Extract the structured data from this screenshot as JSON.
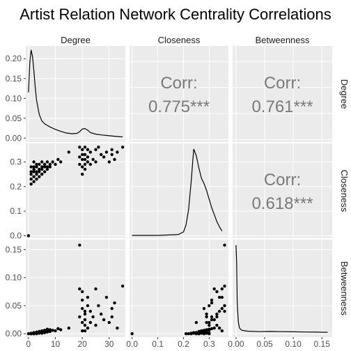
{
  "title": "Artist Relation Network Centrality Correlations",
  "variables": [
    "Degree",
    "Closeness",
    "Betweenness"
  ],
  "colors": {
    "panel_bg": "#ebebeb",
    "grid": "#ffffff",
    "points": "#000000",
    "corr_text": "#7a7a7a",
    "strip_bg": "#ffffff"
  },
  "chart_data": {
    "type": "scatter",
    "layout": "pairs-matrix",
    "grid": true,
    "axes": {
      "Degree": {
        "range": [
          -1,
          36
        ],
        "ticks": [
          0,
          10,
          20,
          30
        ],
        "tick_labels": [
          "0",
          "10",
          "20",
          "30"
        ]
      },
      "Closeness": {
        "range": [
          -0.01,
          0.375
        ],
        "ticks": [
          0.0,
          0.1,
          0.2,
          0.3
        ],
        "tick_labels": [
          "0.0",
          "0.1",
          "0.2",
          "0.3"
        ]
      },
      "Betweenness": {
        "range": [
          -0.006,
          0.168
        ],
        "ticks": [
          0.0,
          0.05,
          0.1,
          0.15
        ],
        "tick_labels": [
          "0.00",
          "0.05",
          "0.10",
          "0.15"
        ]
      }
    },
    "degree_density": {
      "y_ticks": [
        0.0,
        0.05,
        0.1,
        0.15,
        0.2
      ],
      "y_tick_labels": [
        "0.00",
        "0.05",
        "0.10",
        "0.15",
        "0.20"
      ],
      "y_range": [
        -0.01,
        0.232
      ],
      "x": [
        0,
        0.5,
        1,
        1.5,
        2,
        2.5,
        3,
        4,
        5,
        6,
        7,
        8,
        10,
        12,
        14,
        16,
        18,
        19,
        20,
        21,
        22,
        23,
        25,
        27,
        30,
        33,
        35
      ],
      "y": [
        0.115,
        0.19,
        0.222,
        0.205,
        0.17,
        0.13,
        0.095,
        0.06,
        0.043,
        0.036,
        0.032,
        0.028,
        0.022,
        0.017,
        0.013,
        0.011,
        0.012,
        0.016,
        0.023,
        0.024,
        0.02,
        0.014,
        0.01,
        0.008,
        0.006,
        0.004,
        0.003
      ]
    },
    "closeness_density": {
      "x": [
        0.0,
        0.1,
        0.18,
        0.2,
        0.21,
        0.22,
        0.23,
        0.235,
        0.24,
        0.25,
        0.26,
        0.27,
        0.28,
        0.29,
        0.3,
        0.31,
        0.32,
        0.33,
        0.34,
        0.35
      ],
      "y": [
        0.0,
        0.0,
        0.01,
        0.04,
        0.12,
        0.3,
        0.62,
        0.82,
        1.0,
        0.92,
        0.78,
        0.66,
        0.6,
        0.52,
        0.42,
        0.32,
        0.24,
        0.16,
        0.1,
        0.05
      ]
    },
    "betweenness_density": {
      "x": [
        0.0,
        0.001,
        0.002,
        0.004,
        0.006,
        0.01,
        0.02,
        0.04,
        0.06,
        0.08,
        0.1,
        0.12,
        0.14,
        0.16
      ],
      "y": [
        1.0,
        0.8,
        0.35,
        0.14,
        0.07,
        0.045,
        0.035,
        0.03,
        0.032,
        0.03,
        0.028,
        0.026,
        0.024,
        0.022
      ]
    },
    "correlations": [
      {
        "row": "Degree",
        "col": "Closeness",
        "label": "Corr:",
        "value": "0.775***"
      },
      {
        "row": "Degree",
        "col": "Betweenness",
        "label": "Corr:",
        "value": "0.761***"
      },
      {
        "row": "Closeness",
        "col": "Betweenness",
        "label": "Corr:",
        "value": "0.618***"
      }
    ],
    "points": {
      "degree": [
        0,
        1,
        1,
        1,
        1,
        1,
        2,
        2,
        2,
        2,
        2,
        2,
        3,
        3,
        3,
        3,
        3,
        4,
        4,
        4,
        4,
        5,
        5,
        5,
        5,
        6,
        6,
        6,
        7,
        7,
        7,
        8,
        8,
        9,
        10,
        11,
        12,
        15,
        19,
        19,
        19,
        20,
        20,
        20,
        20,
        20,
        21,
        21,
        21,
        21,
        21,
        22,
        22,
        22,
        23,
        23,
        24,
        25,
        25,
        26,
        27,
        28,
        29,
        30,
        31,
        31,
        32,
        33,
        35
      ],
      "closeness": [
        0.0,
        0.21,
        0.23,
        0.25,
        0.26,
        0.28,
        0.22,
        0.24,
        0.26,
        0.27,
        0.28,
        0.3,
        0.23,
        0.25,
        0.26,
        0.28,
        0.29,
        0.24,
        0.26,
        0.27,
        0.29,
        0.25,
        0.27,
        0.28,
        0.3,
        0.26,
        0.28,
        0.29,
        0.27,
        0.28,
        0.3,
        0.28,
        0.29,
        0.3,
        0.29,
        0.31,
        0.3,
        0.34,
        0.36,
        0.32,
        0.29,
        0.33,
        0.31,
        0.28,
        0.25,
        0.35,
        0.36,
        0.29,
        0.31,
        0.33,
        0.27,
        0.35,
        0.3,
        0.32,
        0.34,
        0.29,
        0.31,
        0.35,
        0.3,
        0.36,
        0.33,
        0.32,
        0.34,
        0.3,
        0.35,
        0.33,
        0.31,
        0.34,
        0.36
      ],
      "betweenness": [
        0.0,
        0.0,
        0.0,
        0.0,
        0.001,
        0.0,
        0.0,
        0.001,
        0.0,
        0.002,
        0.001,
        0.0,
        0.001,
        0.002,
        0.0,
        0.003,
        0.001,
        0.002,
        0.003,
        0.001,
        0.004,
        0.002,
        0.005,
        0.003,
        0.001,
        0.004,
        0.006,
        0.002,
        0.005,
        0.003,
        0.008,
        0.004,
        0.007,
        0.006,
        0.005,
        0.009,
        0.007,
        0.01,
        0.158,
        0.08,
        0.03,
        0.075,
        0.06,
        0.045,
        0.02,
        0.005,
        0.04,
        0.035,
        0.025,
        0.015,
        0.005,
        0.065,
        0.05,
        0.01,
        0.04,
        0.02,
        0.03,
        0.08,
        0.015,
        0.05,
        0.035,
        0.025,
        0.065,
        0.02,
        0.045,
        0.03,
        0.055,
        0.01,
        0.085
      ]
    }
  }
}
